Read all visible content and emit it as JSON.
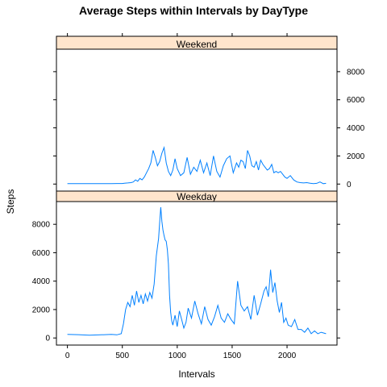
{
  "chart_data": {
    "type": "line",
    "title": "Average Steps within Intervals by DayType",
    "xlabel": "Intervals",
    "ylabel": "Steps",
    "xlim": [
      -100,
      2455
    ],
    "ylim": [
      -500,
      9600
    ],
    "x_ticks": [
      0,
      500,
      1000,
      1500,
      2000
    ],
    "y_ticks": [
      0,
      2000,
      4000,
      6000,
      8000
    ],
    "grid": false,
    "line_color": "#0080ff",
    "strip_color": "#ffe5cc",
    "panels": [
      {
        "name": "Weekend",
        "x": [
          0,
          100,
          200,
          300,
          400,
          450,
          500,
          520,
          550,
          580,
          600,
          620,
          640,
          660,
          680,
          700,
          720,
          740,
          760,
          780,
          800,
          820,
          840,
          860,
          880,
          900,
          920,
          940,
          960,
          980,
          1000,
          1030,
          1060,
          1090,
          1120,
          1150,
          1180,
          1210,
          1240,
          1270,
          1300,
          1330,
          1360,
          1390,
          1420,
          1450,
          1480,
          1510,
          1540,
          1560,
          1580,
          1600,
          1620,
          1640,
          1660,
          1680,
          1700,
          1720,
          1740,
          1760,
          1780,
          1800,
          1820,
          1840,
          1860,
          1880,
          1900,
          1920,
          1940,
          1960,
          1980,
          2000,
          2030,
          2060,
          2090,
          2120,
          2150,
          2180,
          2210,
          2240,
          2270,
          2300,
          2330,
          2355
        ],
        "y": [
          30,
          30,
          30,
          30,
          30,
          40,
          40,
          60,
          80,
          100,
          150,
          300,
          200,
          400,
          300,
          500,
          800,
          1100,
          1500,
          2400,
          1900,
          1300,
          1600,
          2200,
          2600,
          1500,
          900,
          600,
          1000,
          1800,
          1100,
          600,
          800,
          1900,
          700,
          1200,
          900,
          1700,
          800,
          1500,
          600,
          2000,
          900,
          500,
          1300,
          1800,
          2000,
          800,
          1500,
          1200,
          1700,
          1600,
          1100,
          2400,
          2000,
          1300,
          1200,
          1600,
          1000,
          1700,
          1400,
          1200,
          1000,
          1100,
          1400,
          800,
          900,
          800,
          900,
          700,
          500,
          400,
          600,
          300,
          150,
          100,
          80,
          100,
          60,
          30,
          50,
          150,
          30,
          50
        ]
      },
      {
        "name": "Weekday",
        "x": [
          0,
          100,
          200,
          300,
          400,
          450,
          490,
          510,
          530,
          550,
          570,
          590,
          610,
          630,
          650,
          670,
          690,
          710,
          730,
          750,
          770,
          790,
          810,
          830,
          840,
          850,
          860,
          870,
          880,
          890,
          900,
          910,
          920,
          930,
          940,
          950,
          960,
          980,
          1000,
          1020,
          1040,
          1060,
          1080,
          1100,
          1130,
          1160,
          1190,
          1220,
          1250,
          1280,
          1310,
          1340,
          1370,
          1400,
          1430,
          1460,
          1490,
          1520,
          1550,
          1580,
          1610,
          1640,
          1670,
          1700,
          1730,
          1760,
          1790,
          1810,
          1830,
          1850,
          1870,
          1890,
          1910,
          1930,
          1950,
          1970,
          1990,
          2010,
          2040,
          2070,
          2100,
          2130,
          2160,
          2190,
          2220,
          2250,
          2280,
          2310,
          2355
        ],
        "y": [
          250,
          230,
          200,
          220,
          250,
          220,
          300,
          1000,
          2000,
          2500,
          2200,
          3000,
          2300,
          3300,
          2500,
          3000,
          2400,
          3100,
          2600,
          3200,
          2800,
          3800,
          5800,
          7000,
          8100,
          9200,
          8200,
          7600,
          7200,
          6900,
          6800,
          6200,
          5200,
          3000,
          1800,
          1200,
          900,
          1600,
          800,
          1900,
          1300,
          700,
          1100,
          2100,
          1400,
          2600,
          1700,
          1000,
          2200,
          1300,
          900,
          1500,
          2300,
          1400,
          1100,
          1700,
          1300,
          1000,
          4000,
          2300,
          1900,
          2200,
          1300,
          3000,
          1600,
          2400,
          3300,
          3600,
          2900,
          4800,
          3200,
          3900,
          2600,
          1800,
          2500,
          1100,
          1400,
          900,
          800,
          1300,
          600,
          600,
          400,
          700,
          300,
          500,
          300,
          400,
          300
        ]
      }
    ]
  }
}
